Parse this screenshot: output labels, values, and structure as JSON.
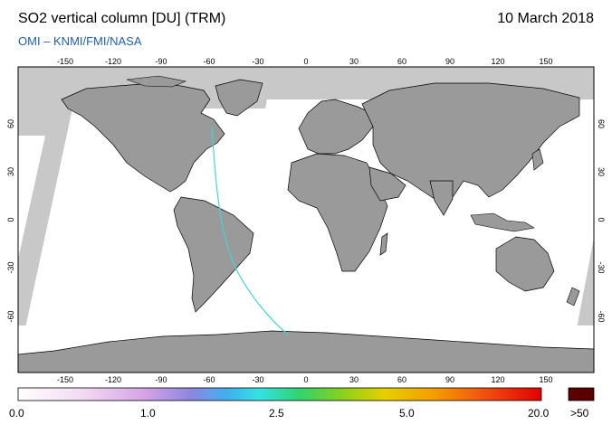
{
  "header": {
    "title": "SO2 vertical column [DU] (TRM)",
    "date": "10 March 2018",
    "credit": "OMI  –  KNMI/FMI/NASA"
  },
  "map": {
    "lon_ticks": [
      "-150",
      "-120",
      "-90",
      "-60",
      "-30",
      "0",
      "30",
      "60",
      "90",
      "120",
      "150"
    ],
    "lat_ticks": [
      "60",
      "30",
      "0",
      "-30",
      "-60"
    ],
    "colors": {
      "no_data": "#c8c8c8",
      "land": "#9a9a9a",
      "coast": "#000000",
      "swath": "#ffffff"
    }
  },
  "colorbar": {
    "labels": [
      "0.0",
      "1.0",
      "2.5",
      "5.0",
      "20.0"
    ],
    "overflow_label": ">50",
    "overflow_color": "#5a0000"
  }
}
